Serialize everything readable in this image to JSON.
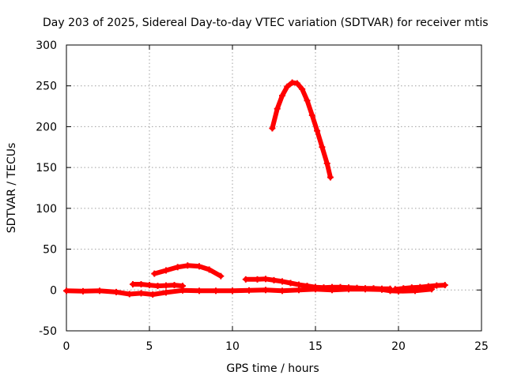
{
  "chart_data": {
    "type": "scatter",
    "title": "Day 203 of 2025, Sidereal Day-to-day VTEC variation (SDTVAR) for receiver mtis",
    "xlabel": "GPS time / hours",
    "ylabel": "SDTVAR / TECUs",
    "xlim": [
      0,
      25
    ],
    "ylim": [
      -50,
      300
    ],
    "xticks": [
      0,
      5,
      10,
      15,
      20,
      25
    ],
    "yticks": [
      -50,
      0,
      50,
      100,
      150,
      200,
      250,
      300
    ],
    "grid": true,
    "legend": "none",
    "marker_color": "#ff0000",
    "series": [
      {
        "points": [
          [
            0.0,
            -1
          ],
          [
            1.0,
            -1.5
          ],
          [
            2.0,
            -1
          ],
          [
            3.0,
            -2.5
          ],
          [
            3.8,
            -5
          ],
          [
            4.5,
            -4
          ],
          [
            5.2,
            -5.5
          ],
          [
            6.0,
            -3
          ],
          [
            7.0,
            -0.5
          ],
          [
            8.0,
            -1
          ],
          [
            9.0,
            -1
          ],
          [
            10.0,
            -1
          ],
          [
            11.0,
            -0.5
          ],
          [
            12.0,
            0
          ],
          [
            13.0,
            -1
          ],
          [
            14.0,
            0
          ],
          [
            15.0,
            1
          ],
          [
            16.0,
            0
          ],
          [
            17.0,
            1
          ],
          [
            18.0,
            1
          ],
          [
            19.0,
            0.5
          ],
          [
            19.5,
            -1
          ],
          [
            20.0,
            -1.5
          ],
          [
            21.0,
            -1
          ],
          [
            22.0,
            1
          ]
        ]
      },
      {
        "points": [
          [
            4.0,
            7
          ],
          [
            4.5,
            7
          ],
          [
            5.0,
            6
          ],
          [
            5.5,
            5
          ],
          [
            6.0,
            5.5
          ],
          [
            6.5,
            6
          ],
          [
            7.0,
            5
          ]
        ]
      },
      {
        "points": [
          [
            5.3,
            20
          ],
          [
            6.0,
            24
          ],
          [
            6.7,
            28
          ],
          [
            7.3,
            30
          ],
          [
            8.0,
            29
          ],
          [
            8.6,
            25
          ],
          [
            9.3,
            17
          ]
        ]
      },
      {
        "points": [
          [
            10.8,
            13
          ],
          [
            11.5,
            13
          ],
          [
            12.0,
            13.5
          ],
          [
            12.5,
            12
          ],
          [
            13.0,
            10.5
          ],
          [
            13.5,
            8.5
          ],
          [
            14.0,
            6.5
          ],
          [
            14.5,
            5
          ],
          [
            15.0,
            3.5
          ],
          [
            15.5,
            3
          ],
          [
            16.0,
            3.5
          ],
          [
            16.5,
            3.5
          ],
          [
            17.0,
            3
          ],
          [
            17.5,
            2.5
          ],
          [
            18.0,
            2
          ],
          [
            18.5,
            2
          ],
          [
            19.0,
            1.5
          ],
          [
            19.5,
            1.5
          ]
        ]
      },
      {
        "points": [
          [
            19.8,
            1
          ],
          [
            20.3,
            2
          ],
          [
            20.8,
            3
          ],
          [
            21.3,
            3.5
          ],
          [
            21.8,
            4.5
          ],
          [
            22.3,
            5.5
          ],
          [
            22.8,
            6
          ]
        ]
      },
      {
        "points": [
          [
            12.4,
            198
          ],
          [
            12.7,
            222
          ],
          [
            13.0,
            238
          ],
          [
            13.3,
            249
          ],
          [
            13.6,
            254
          ],
          [
            13.9,
            253
          ],
          [
            14.2,
            246
          ],
          [
            14.5,
            232
          ],
          [
            14.8,
            214
          ],
          [
            15.1,
            195
          ],
          [
            15.4,
            175
          ],
          [
            15.7,
            155
          ],
          [
            15.9,
            138
          ]
        ]
      }
    ]
  }
}
